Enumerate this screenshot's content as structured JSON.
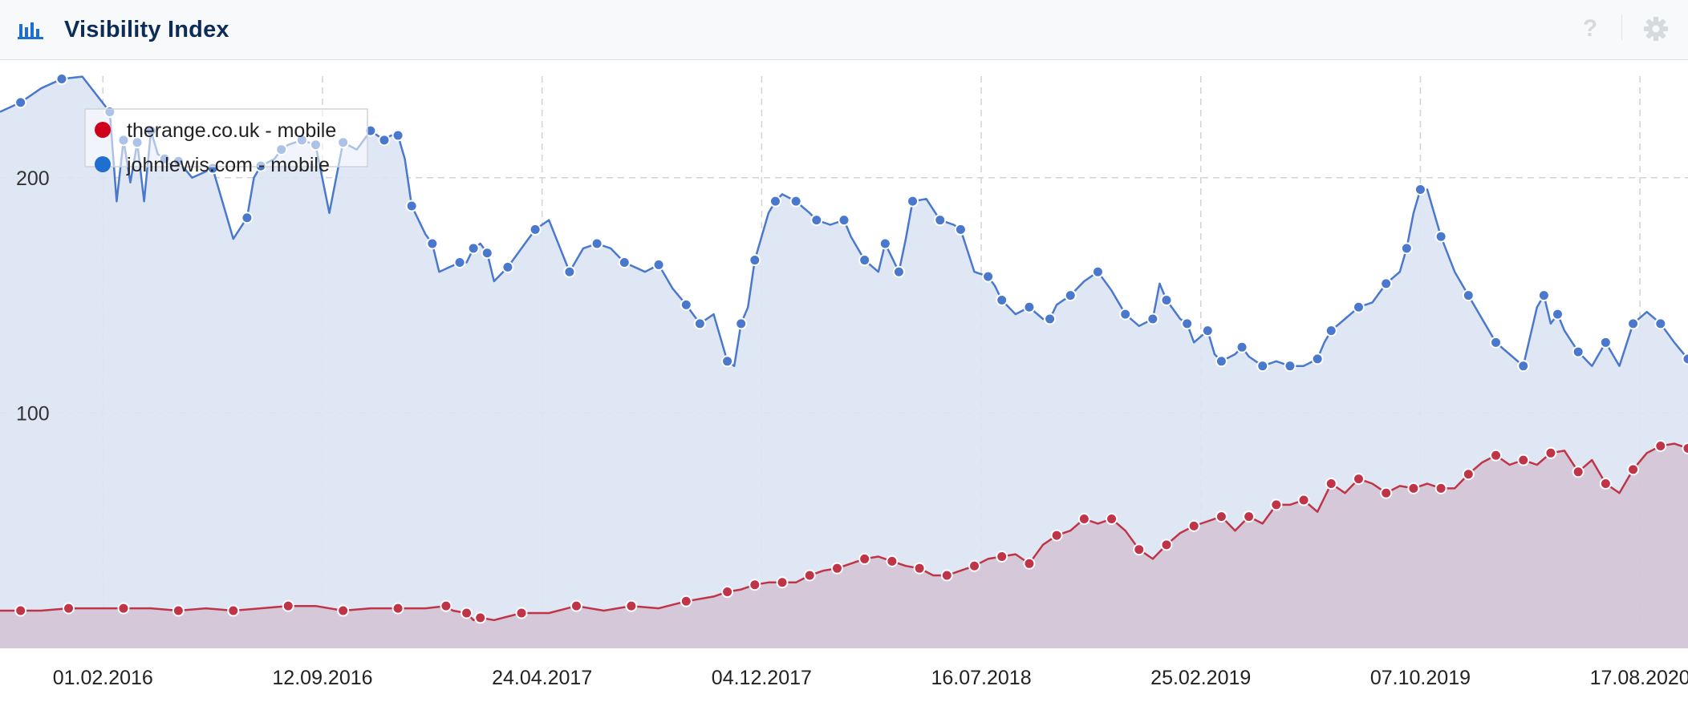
{
  "header": {
    "title": "Visibility Index",
    "title_icon": "bar-chart-icon",
    "help_icon": "question-mark-icon",
    "settings_icon": "gear-icon"
  },
  "colors": {
    "title": "#0d2c58",
    "series_blue": "#4a78cc",
    "series_blue_fill": "#dde4f3",
    "series_red": "#c03448",
    "series_red_fill": "#d2c3d3",
    "grid": "#cfd3d8"
  },
  "chart_data": {
    "type": "area",
    "title": "",
    "xlabel": "",
    "ylabel": "",
    "ylim": [
      0,
      250
    ],
    "yticks": [
      100,
      200
    ],
    "ytick_labels": [
      "100",
      "200"
    ],
    "x_tick_labels": [
      "01.02.2016",
      "12.09.2016",
      "24.04.2017",
      "04.12.2017",
      "16.07.2018",
      "25.02.2019",
      "07.10.2019",
      "17.08.2020"
    ],
    "x_tick_positions": [
      13,
      45,
      77,
      109,
      141,
      173,
      205,
      237
    ],
    "x_range": [
      -2,
      244
    ],
    "legend": {
      "position": "top-left",
      "entries": [
        "therange.co.uk - mobile",
        "johnlewis.com - mobile"
      ]
    },
    "series": [
      {
        "name": "johnlewis.com - mobile",
        "color": "#1f6fd1",
        "x": [
          -2,
          1,
          4,
          7,
          10,
          14,
          15,
          16,
          17,
          18,
          19,
          20,
          21,
          22,
          23,
          24,
          26,
          29,
          32,
          34,
          35,
          36,
          38,
          39,
          40,
          42,
          43,
          44,
          46,
          48,
          50,
          52,
          53,
          54,
          55,
          56,
          57,
          58,
          60,
          61,
          62,
          65,
          66,
          67,
          68,
          69,
          70,
          72,
          74,
          76,
          78,
          81,
          83,
          85,
          87,
          89,
          92,
          94,
          96,
          98,
          99,
          100,
          102,
          104,
          105,
          106,
          107,
          108,
          110,
          111,
          112,
          114,
          116,
          117,
          119,
          121,
          122,
          124,
          126,
          127,
          128,
          129,
          130,
          131,
          133,
          135,
          137,
          138,
          140,
          142,
          143,
          144,
          146,
          148,
          150,
          151,
          152,
          154,
          156,
          158,
          160,
          162,
          164,
          166,
          167,
          168,
          170,
          171,
          172,
          174,
          175,
          176,
          178,
          179,
          180,
          182,
          184,
          186,
          188,
          190,
          191,
          192,
          194,
          196,
          198,
          200,
          202,
          203,
          204,
          205,
          206,
          208,
          210,
          212,
          214,
          216,
          218,
          220,
          222,
          223,
          224,
          225,
          226,
          228,
          230,
          232,
          234,
          236,
          238,
          240,
          242,
          244
        ],
        "y": [
          228,
          232,
          238,
          242,
          243,
          228,
          190,
          216,
          198,
          215,
          190,
          220,
          210,
          208,
          205,
          207,
          200,
          204,
          174,
          183,
          200,
          205,
          208,
          212,
          214,
          216,
          215,
          214,
          185,
          215,
          212,
          220,
          218,
          216,
          218,
          218,
          208,
          188,
          176,
          172,
          160,
          164,
          164,
          170,
          172,
          168,
          156,
          162,
          170,
          178,
          182,
          160,
          170,
          172,
          170,
          164,
          160,
          163,
          153,
          146,
          142,
          138,
          142,
          122,
          120,
          138,
          145,
          165,
          185,
          190,
          193,
          190,
          185,
          182,
          180,
          182,
          175,
          165,
          160,
          172,
          166,
          160,
          174,
          190,
          191,
          182,
          180,
          178,
          160,
          158,
          154,
          148,
          142,
          145,
          140,
          140,
          146,
          150,
          156,
          160,
          152,
          142,
          137,
          140,
          155,
          148,
          140,
          138,
          130,
          135,
          125,
          122,
          125,
          128,
          124,
          120,
          122,
          120,
          120,
          123,
          130,
          135,
          140,
          145,
          147,
          155,
          160,
          170,
          185,
          195,
          195,
          175,
          160,
          150,
          140,
          130,
          125,
          120,
          145,
          150,
          138,
          142,
          135,
          126,
          120,
          130,
          120,
          138,
          143,
          138,
          130,
          123
        ]
      },
      {
        "name": "therange.co.uk - mobile",
        "color": "#d0021b",
        "x": [
          -2,
          1,
          4,
          8,
          12,
          16,
          20,
          24,
          28,
          32,
          36,
          40,
          44,
          48,
          52,
          56,
          60,
          63,
          64,
          66,
          67,
          68,
          70,
          74,
          78,
          82,
          86,
          90,
          94,
          98,
          102,
          104,
          106,
          108,
          110,
          112,
          114,
          116,
          118,
          120,
          122,
          124,
          126,
          128,
          130,
          132,
          134,
          136,
          138,
          140,
          142,
          144,
          146,
          148,
          150,
          152,
          154,
          156,
          158,
          160,
          162,
          164,
          166,
          168,
          170,
          172,
          174,
          176,
          178,
          180,
          182,
          184,
          186,
          188,
          190,
          192,
          194,
          196,
          198,
          200,
          202,
          204,
          206,
          208,
          210,
          212,
          214,
          216,
          218,
          220,
          222,
          224,
          226,
          228,
          230,
          232,
          234,
          236,
          238,
          240,
          242,
          244
        ],
        "y": [
          16,
          16,
          16,
          17,
          17,
          17,
          17,
          16,
          17,
          16,
          17,
          18,
          18,
          16,
          17,
          17,
          17,
          18,
          16,
          15,
          12,
          13,
          12,
          15,
          15,
          18,
          16,
          18,
          17,
          20,
          22,
          24,
          25,
          27,
          28,
          28,
          28,
          31,
          33,
          34,
          36,
          38,
          39,
          37,
          35,
          34,
          31,
          31,
          33,
          35,
          38,
          39,
          40,
          36,
          44,
          48,
          50,
          55,
          53,
          55,
          50,
          42,
          38,
          44,
          49,
          52,
          54,
          56,
          50,
          56,
          53,
          61,
          61,
          63,
          58,
          70,
          66,
          72,
          70,
          66,
          69,
          68,
          70,
          68,
          68,
          74,
          79,
          82,
          78,
          80,
          78,
          83,
          84,
          75,
          80,
          70,
          66,
          76,
          83,
          86,
          87,
          85
        ]
      }
    ]
  }
}
